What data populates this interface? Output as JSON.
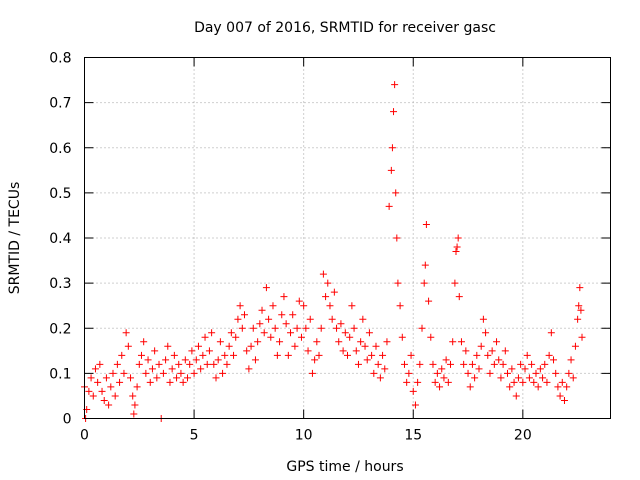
{
  "chart_data": {
    "type": "scatter",
    "title": "Day 007 of 2016, SRMTID for receiver gasc",
    "xlabel": "GPS time / hours",
    "ylabel": "SRMTID / TECUs",
    "xlim": [
      0,
      24
    ],
    "ylim": [
      0,
      0.8
    ],
    "xticks": [
      0,
      5,
      10,
      15,
      20
    ],
    "xtick_labels": [
      "0",
      "5",
      "10",
      "15",
      "20"
    ],
    "yticks": [
      0,
      0.1,
      0.2,
      0.3,
      0.4,
      0.5,
      0.6,
      0.7,
      0.8
    ],
    "ytick_labels": [
      "0",
      "0.1",
      "0.2",
      "0.3",
      "0.4",
      "0.5",
      "0.6",
      "0.7",
      "0.8"
    ],
    "grid": true,
    "marker": "plus",
    "color": "#ff0000",
    "series": [
      {
        "name": "SRMTID",
        "points": [
          [
            0.0,
            0.07
          ],
          [
            0.05,
            0.0
          ],
          [
            0.1,
            0.02
          ],
          [
            0.2,
            0.06
          ],
          [
            0.3,
            0.09
          ],
          [
            0.4,
            0.05
          ],
          [
            0.5,
            0.11
          ],
          [
            0.6,
            0.08
          ],
          [
            0.7,
            0.12
          ],
          [
            0.8,
            0.06
          ],
          [
            0.9,
            0.04
          ],
          [
            1.0,
            0.09
          ],
          [
            1.1,
            0.03
          ],
          [
            1.2,
            0.07
          ],
          [
            1.3,
            0.1
          ],
          [
            1.4,
            0.05
          ],
          [
            1.5,
            0.12
          ],
          [
            1.6,
            0.08
          ],
          [
            1.7,
            0.14
          ],
          [
            1.8,
            0.1
          ],
          [
            1.9,
            0.19
          ],
          [
            2.0,
            0.16
          ],
          [
            2.1,
            0.09
          ],
          [
            2.2,
            0.05
          ],
          [
            2.25,
            0.01
          ],
          [
            2.3,
            0.03
          ],
          [
            2.4,
            0.07
          ],
          [
            2.5,
            0.12
          ],
          [
            2.6,
            0.14
          ],
          [
            2.7,
            0.17
          ],
          [
            2.8,
            0.1
          ],
          [
            2.9,
            0.13
          ],
          [
            3.0,
            0.08
          ],
          [
            3.1,
            0.11
          ],
          [
            3.2,
            0.15
          ],
          [
            3.3,
            0.09
          ],
          [
            3.4,
            0.12
          ],
          [
            3.5,
            0.0
          ],
          [
            3.6,
            0.1
          ],
          [
            3.7,
            0.13
          ],
          [
            3.8,
            0.16
          ],
          [
            3.9,
            0.08
          ],
          [
            4.0,
            0.11
          ],
          [
            4.1,
            0.14
          ],
          [
            4.2,
            0.09
          ],
          [
            4.3,
            0.12
          ],
          [
            4.4,
            0.1
          ],
          [
            4.5,
            0.08
          ],
          [
            4.6,
            0.13
          ],
          [
            4.7,
            0.09
          ],
          [
            4.8,
            0.12
          ],
          [
            4.9,
            0.15
          ],
          [
            5.0,
            0.1
          ],
          [
            5.1,
            0.13
          ],
          [
            5.2,
            0.16
          ],
          [
            5.3,
            0.11
          ],
          [
            5.4,
            0.14
          ],
          [
            5.5,
            0.18
          ],
          [
            5.6,
            0.12
          ],
          [
            5.7,
            0.15
          ],
          [
            5.8,
            0.19
          ],
          [
            5.9,
            0.12
          ],
          [
            6.0,
            0.09
          ],
          [
            6.1,
            0.13
          ],
          [
            6.2,
            0.17
          ],
          [
            6.3,
            0.1
          ],
          [
            6.4,
            0.14
          ],
          [
            6.5,
            0.12
          ],
          [
            6.6,
            0.16
          ],
          [
            6.7,
            0.19
          ],
          [
            6.8,
            0.14
          ],
          [
            6.9,
            0.18
          ],
          [
            7.0,
            0.22
          ],
          [
            7.1,
            0.25
          ],
          [
            7.2,
            0.2
          ],
          [
            7.3,
            0.23
          ],
          [
            7.4,
            0.15
          ],
          [
            7.5,
            0.11
          ],
          [
            7.6,
            0.16
          ],
          [
            7.7,
            0.2
          ],
          [
            7.8,
            0.13
          ],
          [
            7.9,
            0.17
          ],
          [
            8.0,
            0.21
          ],
          [
            8.1,
            0.24
          ],
          [
            8.2,
            0.19
          ],
          [
            8.3,
            0.29
          ],
          [
            8.4,
            0.22
          ],
          [
            8.5,
            0.18
          ],
          [
            8.6,
            0.25
          ],
          [
            8.7,
            0.2
          ],
          [
            8.8,
            0.14
          ],
          [
            8.9,
            0.17
          ],
          [
            9.0,
            0.23
          ],
          [
            9.1,
            0.27
          ],
          [
            9.2,
            0.21
          ],
          [
            9.3,
            0.14
          ],
          [
            9.4,
            0.19
          ],
          [
            9.5,
            0.23
          ],
          [
            9.6,
            0.16
          ],
          [
            9.7,
            0.2
          ],
          [
            9.8,
            0.26
          ],
          [
            9.9,
            0.18
          ],
          [
            10.0,
            0.25
          ],
          [
            10.1,
            0.2
          ],
          [
            10.2,
            0.15
          ],
          [
            10.3,
            0.22
          ],
          [
            10.4,
            0.1
          ],
          [
            10.5,
            0.13
          ],
          [
            10.6,
            0.17
          ],
          [
            10.7,
            0.14
          ],
          [
            10.8,
            0.2
          ],
          [
            10.9,
            0.32
          ],
          [
            11.0,
            0.27
          ],
          [
            11.1,
            0.3
          ],
          [
            11.2,
            0.25
          ],
          [
            11.3,
            0.22
          ],
          [
            11.4,
            0.28
          ],
          [
            11.5,
            0.2
          ],
          [
            11.6,
            0.17
          ],
          [
            11.7,
            0.21
          ],
          [
            11.8,
            0.15
          ],
          [
            11.9,
            0.19
          ],
          [
            12.0,
            0.14
          ],
          [
            12.1,
            0.18
          ],
          [
            12.2,
            0.25
          ],
          [
            12.3,
            0.2
          ],
          [
            12.4,
            0.15
          ],
          [
            12.5,
            0.12
          ],
          [
            12.6,
            0.17
          ],
          [
            12.7,
            0.22
          ],
          [
            12.8,
            0.16
          ],
          [
            12.9,
            0.13
          ],
          [
            13.0,
            0.19
          ],
          [
            13.1,
            0.14
          ],
          [
            13.2,
            0.1
          ],
          [
            13.3,
            0.16
          ],
          [
            13.4,
            0.12
          ],
          [
            13.5,
            0.09
          ],
          [
            13.6,
            0.14
          ],
          [
            13.7,
            0.11
          ],
          [
            13.8,
            0.17
          ],
          [
            13.9,
            0.47
          ],
          [
            14.0,
            0.55
          ],
          [
            14.05,
            0.6
          ],
          [
            14.1,
            0.68
          ],
          [
            14.15,
            0.74
          ],
          [
            14.2,
            0.5
          ],
          [
            14.25,
            0.4
          ],
          [
            14.3,
            0.3
          ],
          [
            14.4,
            0.25
          ],
          [
            14.5,
            0.18
          ],
          [
            14.6,
            0.12
          ],
          [
            14.7,
            0.08
          ],
          [
            14.8,
            0.1
          ],
          [
            14.9,
            0.14
          ],
          [
            15.0,
            0.06
          ],
          [
            15.1,
            0.03
          ],
          [
            15.2,
            0.08
          ],
          [
            15.3,
            0.12
          ],
          [
            15.4,
            0.2
          ],
          [
            15.5,
            0.3
          ],
          [
            15.55,
            0.34
          ],
          [
            15.6,
            0.43
          ],
          [
            15.7,
            0.26
          ],
          [
            15.8,
            0.18
          ],
          [
            15.9,
            0.12
          ],
          [
            16.0,
            0.08
          ],
          [
            16.1,
            0.1
          ],
          [
            16.2,
            0.07
          ],
          [
            16.3,
            0.11
          ],
          [
            16.4,
            0.09
          ],
          [
            16.5,
            0.13
          ],
          [
            16.6,
            0.08
          ],
          [
            16.7,
            0.12
          ],
          [
            16.8,
            0.17
          ],
          [
            16.9,
            0.3
          ],
          [
            16.95,
            0.37
          ],
          [
            17.0,
            0.38
          ],
          [
            17.05,
            0.4
          ],
          [
            17.1,
            0.27
          ],
          [
            17.2,
            0.17
          ],
          [
            17.3,
            0.12
          ],
          [
            17.4,
            0.15
          ],
          [
            17.5,
            0.1
          ],
          [
            17.6,
            0.07
          ],
          [
            17.7,
            0.12
          ],
          [
            17.8,
            0.09
          ],
          [
            17.9,
            0.14
          ],
          [
            18.0,
            0.11
          ],
          [
            18.1,
            0.16
          ],
          [
            18.2,
            0.22
          ],
          [
            18.3,
            0.19
          ],
          [
            18.4,
            0.14
          ],
          [
            18.5,
            0.1
          ],
          [
            18.6,
            0.15
          ],
          [
            18.7,
            0.12
          ],
          [
            18.8,
            0.17
          ],
          [
            18.9,
            0.13
          ],
          [
            19.0,
            0.09
          ],
          [
            19.1,
            0.12
          ],
          [
            19.2,
            0.15
          ],
          [
            19.3,
            0.1
          ],
          [
            19.4,
            0.07
          ],
          [
            19.5,
            0.11
          ],
          [
            19.6,
            0.08
          ],
          [
            19.7,
            0.05
          ],
          [
            19.8,
            0.09
          ],
          [
            19.9,
            0.12
          ],
          [
            20.0,
            0.08
          ],
          [
            20.1,
            0.11
          ],
          [
            20.2,
            0.14
          ],
          [
            20.3,
            0.09
          ],
          [
            20.4,
            0.12
          ],
          [
            20.5,
            0.08
          ],
          [
            20.6,
            0.1
          ],
          [
            20.7,
            0.07
          ],
          [
            20.8,
            0.11
          ],
          [
            20.9,
            0.09
          ],
          [
            21.0,
            0.12
          ],
          [
            21.1,
            0.08
          ],
          [
            21.2,
            0.14
          ],
          [
            21.3,
            0.19
          ],
          [
            21.4,
            0.13
          ],
          [
            21.5,
            0.1
          ],
          [
            21.6,
            0.07
          ],
          [
            21.7,
            0.05
          ],
          [
            21.8,
            0.08
          ],
          [
            21.9,
            0.04
          ],
          [
            22.0,
            0.07
          ],
          [
            22.1,
            0.1
          ],
          [
            22.2,
            0.13
          ],
          [
            22.3,
            0.09
          ],
          [
            22.4,
            0.16
          ],
          [
            22.5,
            0.22
          ],
          [
            22.55,
            0.25
          ],
          [
            22.6,
            0.29
          ],
          [
            22.65,
            0.24
          ],
          [
            22.7,
            0.18
          ]
        ]
      }
    ]
  }
}
